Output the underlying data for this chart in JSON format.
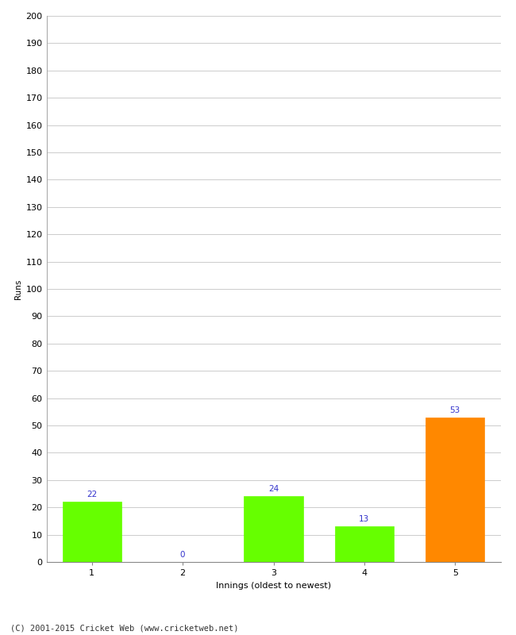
{
  "title": "",
  "xlabel": "Innings (oldest to newest)",
  "ylabel": "Runs",
  "categories": [
    "1",
    "2",
    "3",
    "4",
    "5"
  ],
  "values": [
    22,
    0,
    24,
    13,
    53
  ],
  "bar_colors": [
    "#66ff00",
    "#66ff00",
    "#66ff00",
    "#66ff00",
    "#ff8800"
  ],
  "ylim": [
    0,
    200
  ],
  "yticks": [
    0,
    10,
    20,
    30,
    40,
    50,
    60,
    70,
    80,
    90,
    100,
    110,
    120,
    130,
    140,
    150,
    160,
    170,
    180,
    190,
    200
  ],
  "label_color": "#3333cc",
  "label_fontsize": 7.5,
  "axis_fontsize": 8,
  "ylabel_fontsize": 7.5,
  "xlabel_fontsize": 8,
  "footer": "(C) 2001-2015 Cricket Web (www.cricketweb.net)",
  "footer_fontsize": 7.5,
  "background_color": "#ffffff",
  "grid_color": "#cccccc",
  "bar_width": 0.65
}
